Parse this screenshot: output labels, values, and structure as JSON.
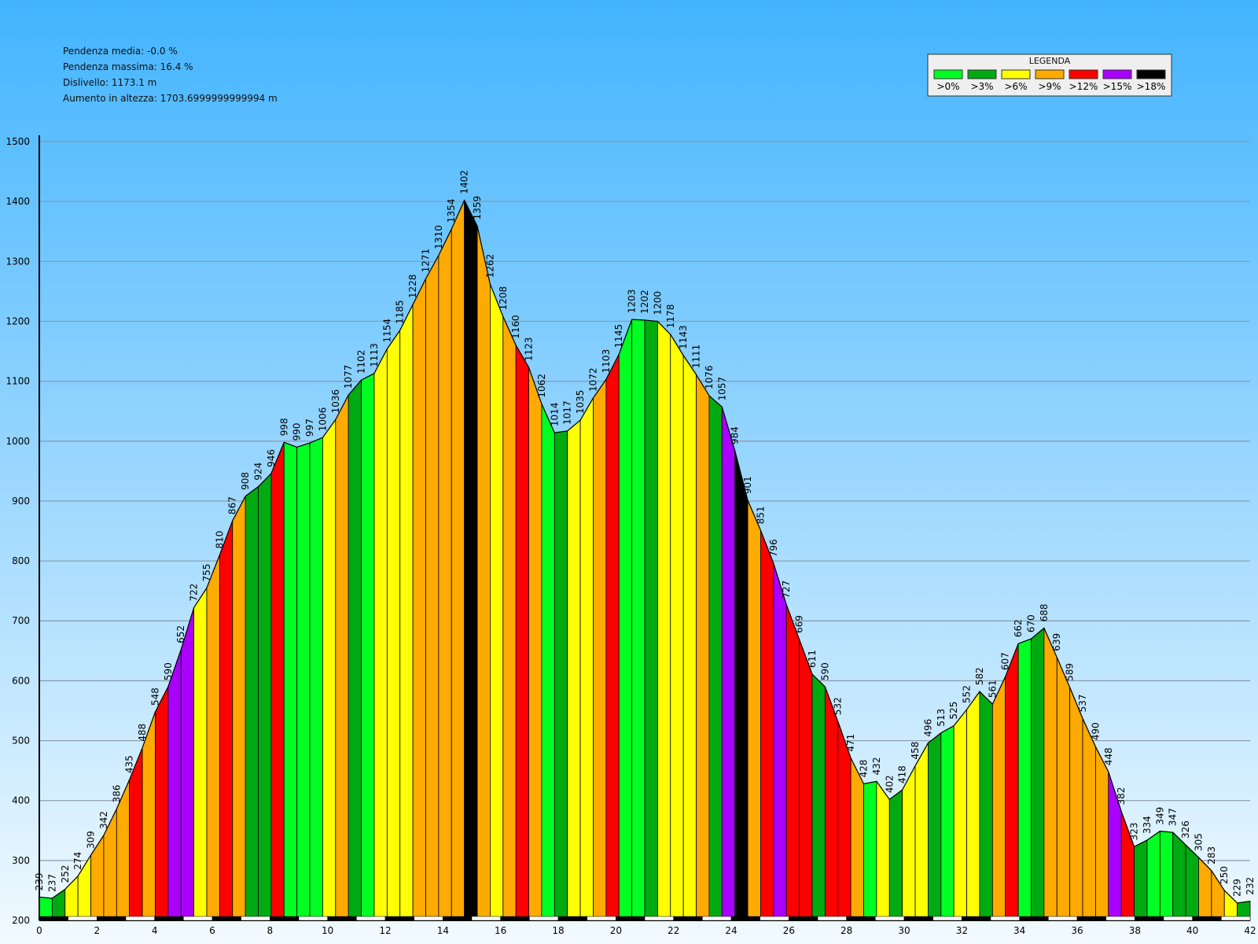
{
  "stats": {
    "line1": "Pendenza media: -0.0 %",
    "line2": "Pendenza massima: 16.4 %",
    "line3": "Dislivello: 1173.1 m",
    "line4": "Aumento in altezza: 1703.6999999999994 m"
  },
  "legend": {
    "title": "LEGENDA",
    "items": [
      {
        "label": ">0%",
        "color": "#00FF22"
      },
      {
        "label": ">3%",
        "color": "#00AA11"
      },
      {
        "label": ">6%",
        "color": "#FFFF00"
      },
      {
        "label": ">9%",
        "color": "#FFAA00"
      },
      {
        "label": ">12%",
        "color": "#FF0000"
      },
      {
        "label": ">15%",
        "color": "#AA00FF"
      },
      {
        "label": ">18%",
        "color": "#000000"
      }
    ]
  },
  "chart_data": {
    "type": "area",
    "title": "",
    "xlabel": "",
    "ylabel": "",
    "xlim": [
      0,
      42
    ],
    "ylim": [
      200,
      1500
    ],
    "x_ticks": [
      0,
      2,
      4,
      6,
      8,
      10,
      12,
      14,
      16,
      18,
      20,
      22,
      24,
      26,
      28,
      30,
      32,
      34,
      36,
      38,
      40,
      42
    ],
    "y_ticks": [
      200,
      300,
      400,
      500,
      600,
      700,
      800,
      900,
      1000,
      1100,
      1200,
      1300,
      1400,
      1500
    ],
    "grid": true,
    "legend_position": "top-right",
    "elevations": [
      239,
      237,
      252,
      274,
      309,
      342,
      386,
      435,
      488,
      548,
      590,
      652,
      722,
      755,
      810,
      867,
      908,
      924,
      946,
      998,
      990,
      997,
      1006,
      1036,
      1077,
      1102,
      1113,
      1154,
      1185,
      1228,
      1271,
      1310,
      1354,
      1402,
      1359,
      1262,
      1208,
      1160,
      1123,
      1062,
      1014,
      1017,
      1035,
      1072,
      1103,
      1145,
      1203,
      1202,
      1200,
      1178,
      1143,
      1111,
      1076,
      1057,
      984,
      901,
      851,
      796,
      727,
      669,
      611,
      590,
      532,
      471,
      428,
      432,
      402,
      418,
      458,
      496,
      513,
      525,
      552,
      582,
      561,
      607,
      662,
      670,
      688,
      639,
      589,
      537,
      490,
      448,
      382,
      323,
      334,
      349,
      347,
      326,
      305,
      283,
      250,
      229,
      232
    ],
    "segment_grades": [
      1,
      2,
      3,
      3,
      4,
      4,
      4,
      5,
      4,
      5,
      6,
      6,
      3,
      4,
      5,
      4,
      2,
      2,
      5,
      1,
      1,
      1,
      3,
      4,
      2,
      1,
      3,
      3,
      3,
      4,
      4,
      4,
      4,
      7,
      4,
      3,
      4,
      5,
      4,
      1,
      2,
      3,
      3,
      4,
      5,
      1,
      1,
      2,
      3,
      3,
      3,
      4,
      2,
      6,
      7,
      4,
      5,
      6,
      5,
      5,
      2,
      5,
      5,
      4,
      1,
      3,
      2,
      3,
      3,
      2,
      1,
      3,
      3,
      2,
      4,
      5,
      1,
      2,
      4,
      4,
      4,
      4,
      4,
      6,
      5,
      2,
      1,
      1,
      2,
      2,
      4,
      4,
      3,
      2
    ]
  }
}
